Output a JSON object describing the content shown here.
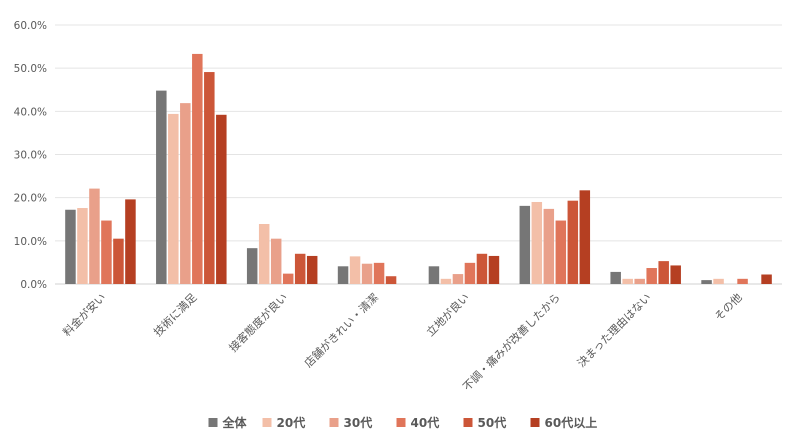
{
  "chart_data": {
    "type": "bar",
    "categories": [
      "料金が安い",
      "技術に満足",
      "接客態度が良い",
      "店舗がきれい・清潔",
      "立地が良い",
      "不調・痛みが改善したから",
      "決まった理由はない",
      "その他"
    ],
    "series": [
      {
        "name": "全体",
        "color": "#767676",
        "values": [
          17.2,
          44.8,
          8.3,
          4.1,
          4.1,
          18.1,
          2.8,
          0.9
        ]
      },
      {
        "name": "20代",
        "color": "#f3bfa8",
        "values": [
          17.6,
          39.4,
          13.9,
          6.4,
          1.2,
          19.0,
          1.2,
          1.2
        ]
      },
      {
        "name": "30代",
        "color": "#e9a08a",
        "values": [
          22.1,
          41.9,
          10.5,
          4.7,
          2.3,
          17.4,
          1.2,
          0.0
        ]
      },
      {
        "name": "40代",
        "color": "#e0755a",
        "values": [
          14.7,
          53.3,
          2.4,
          4.9,
          4.9,
          14.7,
          3.7,
          1.2
        ]
      },
      {
        "name": "50代",
        "color": "#cc5638",
        "values": [
          10.5,
          49.1,
          7.0,
          1.8,
          7.0,
          19.3,
          5.3,
          0.0
        ]
      },
      {
        "name": "60代以上",
        "color": "#b53f22",
        "values": [
          19.6,
          39.2,
          6.5,
          0.0,
          6.5,
          21.7,
          4.3,
          2.2
        ]
      }
    ],
    "y_ticks": [
      "0.0%",
      "10.0%",
      "20.0%",
      "30.0%",
      "40.0%",
      "50.0%",
      "60.0%"
    ],
    "ylim": [
      0,
      60
    ],
    "grid": true,
    "legend_position": "bottom"
  }
}
